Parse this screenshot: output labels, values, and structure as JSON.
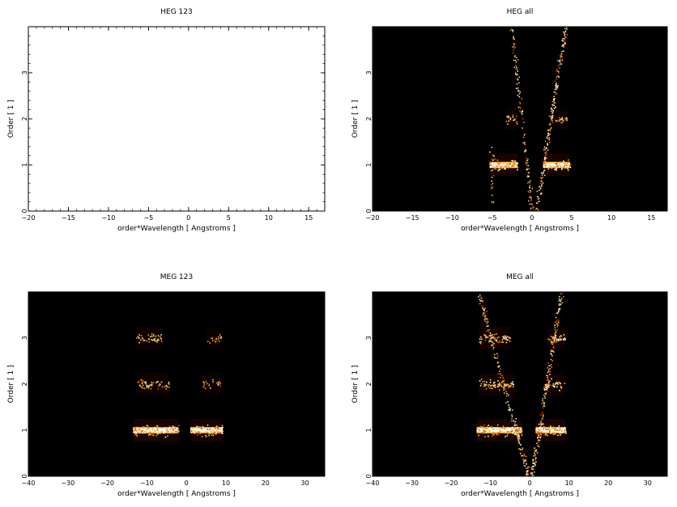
{
  "figure": {
    "background": "#ffffff",
    "axis_color": "#000000",
    "plot_background_empty": "#ffffff",
    "plot_background_image": "#000000",
    "colormap": [
      "#000000",
      "#3a0000",
      "#8a1a00",
      "#d45a00",
      "#f5a020",
      "#ffe090",
      "#ffffff"
    ]
  },
  "chart_data": [
    {
      "id": "heg123",
      "type": "heatmap",
      "title": "HEG 123",
      "xlabel": "order*Wavelength [ Angstroms ]",
      "ylabel": "Order [ 1 ]",
      "xlim": [
        -20,
        17
      ],
      "ylim": [
        0,
        4
      ],
      "xticks": [
        -20,
        -15,
        -10,
        -5,
        0,
        5,
        10,
        15
      ],
      "yticks": [
        0,
        1,
        2,
        3
      ],
      "xticks_minor_step": 1,
      "yticks_minor_step": 0.2,
      "background": "#ffffff",
      "bands": [],
      "spray": []
    },
    {
      "id": "hegall",
      "type": "heatmap",
      "title": "HEG all",
      "xlabel": "order*Wavelength [ Angstroms ]",
      "ylabel": "Order [ 1 ]",
      "xlim": [
        -20,
        17
      ],
      "ylim": [
        0,
        4
      ],
      "xticks": [
        -20,
        -15,
        -10,
        -5,
        0,
        5,
        10,
        15
      ],
      "yticks": [
        0,
        1,
        2,
        3
      ],
      "xticks_minor_step": 1,
      "yticks_minor_step": 0.2,
      "background": "#000000",
      "bands": [
        {
          "x": [
            -5.3,
            -1.8
          ],
          "y": 1.0,
          "intensity": 1.0
        },
        {
          "x": [
            1.4,
            4.8
          ],
          "y": 1.0,
          "intensity": 1.0
        },
        {
          "x": [
            -3.3,
            -1.9
          ],
          "y": 2.0,
          "intensity": 0.6
        },
        {
          "x": [
            2.8,
            4.4
          ],
          "y": 2.0,
          "intensity": 0.6
        }
      ],
      "spray": [
        {
          "from": [
            0.0,
            0.0
          ],
          "to": [
            -2.6,
            4.0
          ],
          "density": 0.5
        },
        {
          "from": [
            0.5,
            0.0
          ],
          "to": [
            4.2,
            4.0
          ],
          "density": 0.9
        },
        {
          "from": [
            -5.0,
            0.2
          ],
          "to": [
            -5.0,
            1.4
          ],
          "density": 0.3
        }
      ]
    },
    {
      "id": "meg123",
      "type": "heatmap",
      "title": "MEG 123",
      "xlabel": "order*Wavelength [ Angstroms ]",
      "ylabel": "Order [ 1 ]",
      "xlim": [
        -40,
        35
      ],
      "ylim": [
        0,
        4
      ],
      "xticks": [
        -40,
        -30,
        -20,
        -10,
        0,
        10,
        20,
        30
      ],
      "yticks": [
        0,
        1,
        2,
        3
      ],
      "xticks_minor_step": 2,
      "yticks_minor_step": 0.2,
      "background": "#000000",
      "bands": [
        {
          "x": [
            -13.5,
            -2.0
          ],
          "y": 1.0,
          "intensity": 1.0
        },
        {
          "x": [
            1.0,
            9.2
          ],
          "y": 1.0,
          "intensity": 1.0
        },
        {
          "x": [
            -12.5,
            -4.5
          ],
          "y": 2.0,
          "intensity": 0.55
        },
        {
          "x": [
            4.0,
            8.6
          ],
          "y": 2.0,
          "intensity": 0.45
        },
        {
          "x": [
            -12.8,
            -6.0
          ],
          "y": 3.0,
          "intensity": 0.55
        },
        {
          "x": [
            5.2,
            8.8
          ],
          "y": 3.0,
          "intensity": 0.45
        }
      ],
      "spray": []
    },
    {
      "id": "megall",
      "type": "heatmap",
      "title": "MEG all",
      "xlabel": "order*Wavelength [ Angstroms ]",
      "ylabel": "Order [ 1 ]",
      "xlim": [
        -40,
        35
      ],
      "ylim": [
        0,
        4
      ],
      "xticks": [
        -40,
        -30,
        -20,
        -10,
        0,
        10,
        20,
        30
      ],
      "yticks": [
        0,
        1,
        2,
        3
      ],
      "xticks_minor_step": 2,
      "yticks_minor_step": 0.2,
      "background": "#000000",
      "bands": [
        {
          "x": [
            -13.5,
            -2.0
          ],
          "y": 1.0,
          "intensity": 1.0
        },
        {
          "x": [
            1.5,
            9.2
          ],
          "y": 1.0,
          "intensity": 1.0
        },
        {
          "x": [
            -13.0,
            -4.0
          ],
          "y": 2.0,
          "intensity": 0.75
        },
        {
          "x": [
            3.5,
            8.8
          ],
          "y": 2.0,
          "intensity": 0.7
        },
        {
          "x": [
            -13.0,
            -5.0
          ],
          "y": 3.0,
          "intensity": 0.75
        },
        {
          "x": [
            4.5,
            9.0
          ],
          "y": 3.0,
          "intensity": 0.7
        }
      ],
      "spray": [
        {
          "from": [
            -0.5,
            0.0
          ],
          "to": [
            -13.0,
            4.0
          ],
          "density": 0.7
        },
        {
          "from": [
            0.5,
            0.0
          ],
          "to": [
            8.0,
            4.0
          ],
          "density": 0.8
        },
        {
          "from": [
            0.0,
            0.0
          ],
          "to": [
            -4.0,
            1.2
          ],
          "density": 0.5
        },
        {
          "from": [
            0.0,
            0.0
          ],
          "to": [
            3.0,
            1.2
          ],
          "density": 0.5
        }
      ]
    }
  ]
}
